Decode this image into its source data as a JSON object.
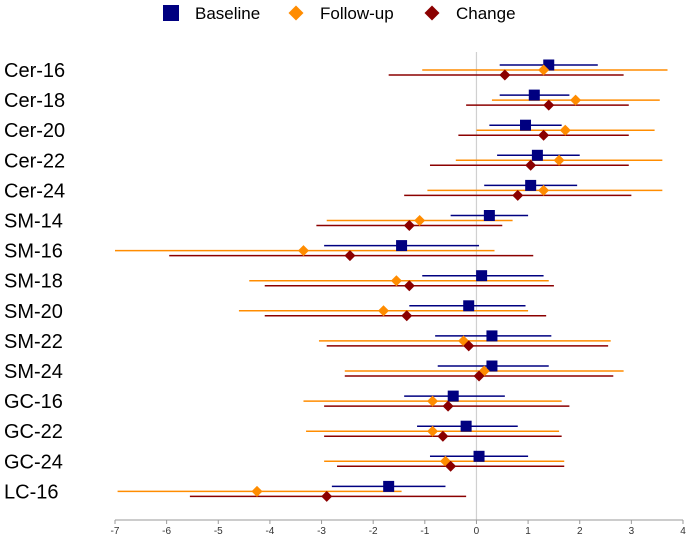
{
  "chart_data": {
    "type": "forest",
    "title": "",
    "xlabel": "",
    "ylabel": "",
    "xlim": [
      -7,
      4
    ],
    "xticks": [
      -7,
      -6,
      -5,
      -4,
      -3,
      -2,
      -1,
      0,
      1,
      2,
      3,
      4
    ],
    "reference_line": 0,
    "legend_position": "top",
    "categories": [
      "Cer-16",
      "Cer-18",
      "Cer-20",
      "Cer-22",
      "Cer-24",
      "SM-14",
      "SM-16",
      "SM-18",
      "SM-20",
      "SM-22",
      "SM-24",
      "GC-16",
      "GC-22",
      "GC-24",
      "LC-16"
    ],
    "series": [
      {
        "name": "Baseline",
        "color": "#000080",
        "marker": "square",
        "points": [
          {
            "est": 1.4,
            "lo": 0.45,
            "hi": 2.35
          },
          {
            "est": 1.12,
            "lo": 0.45,
            "hi": 1.8
          },
          {
            "est": 0.95,
            "lo": 0.25,
            "hi": 1.65
          },
          {
            "est": 1.18,
            "lo": 0.4,
            "hi": 2.0
          },
          {
            "est": 1.05,
            "lo": 0.15,
            "hi": 1.95
          },
          {
            "est": 0.25,
            "lo": -0.5,
            "hi": 1.0
          },
          {
            "est": -1.45,
            "lo": -2.95,
            "hi": 0.05
          },
          {
            "est": 0.1,
            "lo": -1.05,
            "hi": 1.3
          },
          {
            "est": -0.15,
            "lo": -1.3,
            "hi": 0.95
          },
          {
            "est": 0.3,
            "lo": -0.8,
            "hi": 1.45
          },
          {
            "est": 0.3,
            "lo": -0.75,
            "hi": 1.4
          },
          {
            "est": -0.45,
            "lo": -1.4,
            "hi": 0.55
          },
          {
            "est": -0.2,
            "lo": -1.15,
            "hi": 0.8
          },
          {
            "est": 0.05,
            "lo": -0.9,
            "hi": 1.0
          },
          {
            "est": -1.7,
            "lo": -2.8,
            "hi": -0.6
          }
        ]
      },
      {
        "name": "Follow-up",
        "color": "#FF8C00",
        "marker": "diamond",
        "points": [
          {
            "est": 1.3,
            "lo": -1.05,
            "hi": 3.7
          },
          {
            "est": 1.92,
            "lo": 0.3,
            "hi": 3.55
          },
          {
            "est": 1.72,
            "lo": 0.0,
            "hi": 3.45
          },
          {
            "est": 1.6,
            "lo": -0.4,
            "hi": 3.6
          },
          {
            "est": 1.3,
            "lo": -0.95,
            "hi": 3.6
          },
          {
            "est": -1.1,
            "lo": -2.9,
            "hi": 0.7
          },
          {
            "est": -3.35,
            "lo": -7.0,
            "hi": 0.35
          },
          {
            "est": -1.55,
            "lo": -4.4,
            "hi": 1.4
          },
          {
            "est": -1.8,
            "lo": -4.6,
            "hi": 1.0
          },
          {
            "est": -0.25,
            "lo": -3.05,
            "hi": 2.6
          },
          {
            "est": 0.15,
            "lo": -2.55,
            "hi": 2.85
          },
          {
            "est": -0.85,
            "lo": -3.35,
            "hi": 1.65
          },
          {
            "est": -0.85,
            "lo": -3.3,
            "hi": 1.6
          },
          {
            "est": -0.6,
            "lo": -2.95,
            "hi": 1.7
          },
          {
            "est": -4.25,
            "lo": -6.95,
            "hi": -1.45
          }
        ]
      },
      {
        "name": "Change",
        "color": "#8B0000",
        "marker": "diamond",
        "points": [
          {
            "est": 0.55,
            "lo": -1.7,
            "hi": 2.85
          },
          {
            "est": 1.4,
            "lo": -0.2,
            "hi": 2.95
          },
          {
            "est": 1.3,
            "lo": -0.35,
            "hi": 2.95
          },
          {
            "est": 1.05,
            "lo": -0.9,
            "hi": 2.95
          },
          {
            "est": 0.8,
            "lo": -1.4,
            "hi": 3.0
          },
          {
            "est": -1.3,
            "lo": -3.1,
            "hi": 0.5
          },
          {
            "est": -2.45,
            "lo": -5.95,
            "hi": 1.1
          },
          {
            "est": -1.3,
            "lo": -4.1,
            "hi": 1.5
          },
          {
            "est": -1.35,
            "lo": -4.1,
            "hi": 1.35
          },
          {
            "est": -0.15,
            "lo": -2.9,
            "hi": 2.55
          },
          {
            "est": 0.05,
            "lo": -2.55,
            "hi": 2.65
          },
          {
            "est": -0.55,
            "lo": -2.95,
            "hi": 1.8
          },
          {
            "est": -0.65,
            "lo": -2.95,
            "hi": 1.65
          },
          {
            "est": -0.5,
            "lo": -2.7,
            "hi": 1.7
          },
          {
            "est": -2.9,
            "lo": -5.55,
            "hi": -0.2
          }
        ]
      }
    ]
  }
}
